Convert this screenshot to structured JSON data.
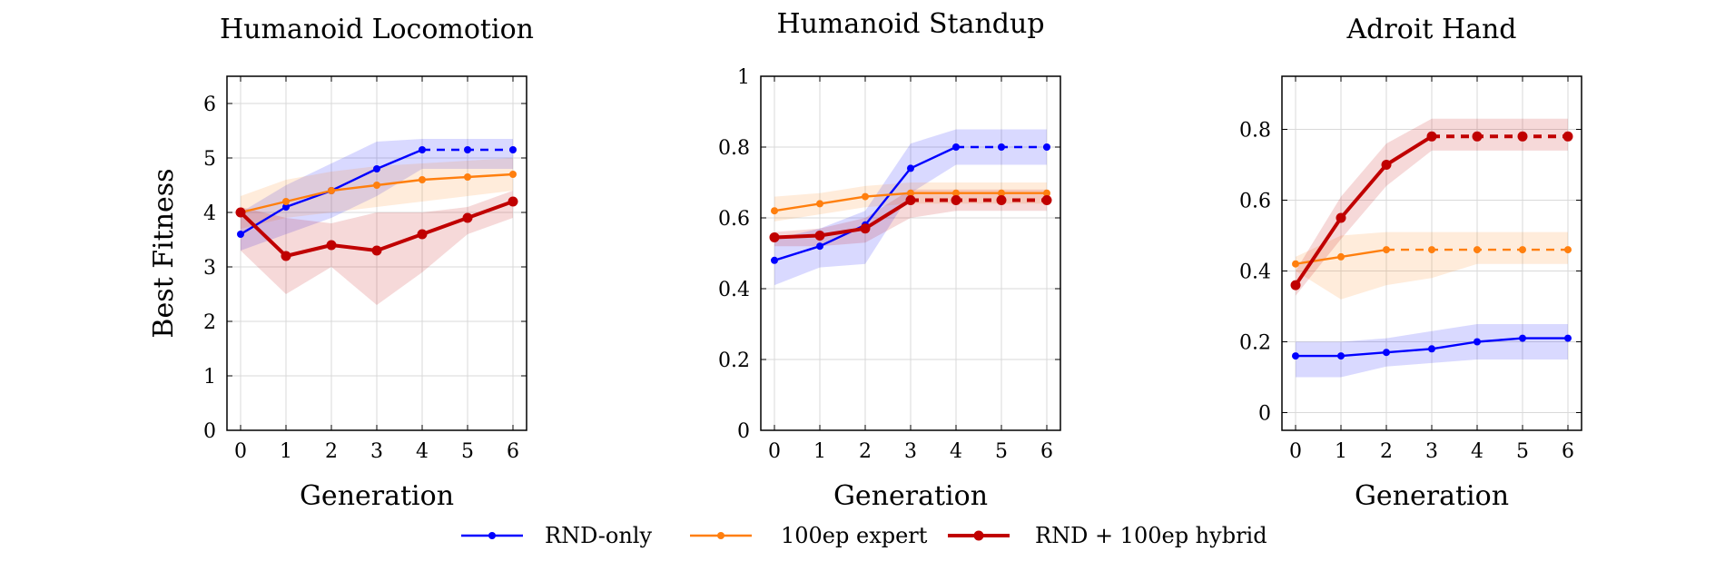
{
  "chart_data": [
    {
      "type": "line",
      "title": "Humanoid Locomotion",
      "xlabel": "Generation",
      "ylabel": "Best Fitness",
      "x": [
        0,
        1,
        2,
        3,
        4,
        5,
        6
      ],
      "xlim": [
        -0.3,
        6.3
      ],
      "ylim": [
        0,
        6.5
      ],
      "yticks": [
        0,
        1,
        2,
        3,
        4,
        5,
        6
      ],
      "ytick_labels": [
        "0",
        "1",
        "2",
        "3",
        "4",
        "5",
        "6"
      ],
      "grid": true,
      "series": [
        {
          "name": "RND-only",
          "color": "#0000ff",
          "values": [
            3.6,
            4.1,
            4.4,
            4.8,
            5.15,
            5.15,
            5.15
          ],
          "lower": [
            3.3,
            3.6,
            3.9,
            4.3,
            4.8,
            4.8,
            4.8
          ],
          "upper": [
            4.0,
            4.5,
            4.9,
            5.3,
            5.35,
            5.35,
            5.35
          ],
          "dashed_from": 4
        },
        {
          "name": "100ep expert",
          "color": "#ff7f0e",
          "values": [
            4.0,
            4.2,
            4.4,
            4.5,
            4.6,
            4.65,
            4.7
          ],
          "lower": [
            3.7,
            3.9,
            4.0,
            4.1,
            4.2,
            4.3,
            4.4
          ],
          "upper": [
            4.3,
            4.6,
            4.75,
            4.85,
            4.9,
            4.95,
            5.0
          ]
        },
        {
          "name": "RND + 100ep hybrid",
          "color": "#c00000",
          "values": [
            4.0,
            3.2,
            3.4,
            3.3,
            3.6,
            3.9,
            4.2
          ],
          "lower": [
            3.3,
            2.5,
            3.0,
            2.3,
            2.9,
            3.6,
            3.9
          ],
          "upper": [
            4.1,
            3.9,
            3.8,
            4.0,
            4.0,
            4.1,
            4.4
          ]
        }
      ]
    },
    {
      "type": "line",
      "title": "Humanoid Standup",
      "xlabel": "Generation",
      "ylabel": "",
      "x": [
        0,
        1,
        2,
        3,
        4,
        5,
        6
      ],
      "xlim": [
        -0.3,
        6.3
      ],
      "ylim": [
        0,
        1
      ],
      "yticks": [
        0,
        0.2,
        0.4,
        0.6,
        0.8,
        1
      ],
      "ytick_labels": [
        "0",
        "0.2",
        "0.4",
        "0.6",
        "0.8",
        "1"
      ],
      "grid": true,
      "series": [
        {
          "name": "RND-only",
          "color": "#0000ff",
          "values": [
            0.48,
            0.52,
            0.58,
            0.74,
            0.8,
            0.8,
            0.8
          ],
          "lower": [
            0.41,
            0.46,
            0.47,
            0.67,
            0.75,
            0.75,
            0.75
          ],
          "upper": [
            0.54,
            0.57,
            0.62,
            0.81,
            0.85,
            0.85,
            0.85
          ],
          "dashed_from": 4
        },
        {
          "name": "100ep expert",
          "color": "#ff7f0e",
          "values": [
            0.62,
            0.64,
            0.66,
            0.67,
            0.67,
            0.67,
            0.67
          ],
          "lower": [
            0.59,
            0.61,
            0.63,
            0.64,
            0.64,
            0.64,
            0.64
          ],
          "upper": [
            0.66,
            0.67,
            0.69,
            0.7,
            0.7,
            0.7,
            0.7
          ]
        },
        {
          "name": "RND + 100ep hybrid",
          "color": "#c00000",
          "values": [
            0.545,
            0.55,
            0.57,
            0.65,
            0.65,
            0.65,
            0.65
          ],
          "lower": [
            0.52,
            0.52,
            0.53,
            0.6,
            0.62,
            0.62,
            0.62
          ],
          "upper": [
            0.56,
            0.57,
            0.6,
            0.68,
            0.68,
            0.68,
            0.68
          ],
          "dashed_from": 3
        }
      ]
    },
    {
      "type": "line",
      "title": "Adroit Hand",
      "xlabel": "Generation",
      "ylabel": "",
      "x": [
        0,
        1,
        2,
        3,
        4,
        5,
        6
      ],
      "xlim": [
        -0.3,
        6.3
      ],
      "ylim": [
        -0.05,
        0.95
      ],
      "yticks": [
        0,
        0.2,
        0.4,
        0.6,
        0.8
      ],
      "ytick_labels": [
        "0",
        "0.2",
        "0.4",
        "0.6",
        "0.8"
      ],
      "grid": true,
      "series": [
        {
          "name": "RND-only",
          "color": "#0000ff",
          "values": [
            0.16,
            0.16,
            0.17,
            0.18,
            0.2,
            0.21,
            0.21
          ],
          "lower": [
            0.1,
            0.1,
            0.13,
            0.14,
            0.15,
            0.15,
            0.15
          ],
          "upper": [
            0.2,
            0.2,
            0.21,
            0.23,
            0.25,
            0.25,
            0.25
          ]
        },
        {
          "name": "100ep expert",
          "color": "#ff7f0e",
          "values": [
            0.42,
            0.44,
            0.46,
            0.46,
            0.46,
            0.46,
            0.46
          ],
          "lower": [
            0.4,
            0.32,
            0.36,
            0.38,
            0.42,
            0.42,
            0.42
          ],
          "upper": [
            0.44,
            0.5,
            0.51,
            0.51,
            0.51,
            0.51,
            0.51
          ],
          "dashed_from": 2
        },
        {
          "name": "RND + 100ep hybrid",
          "color": "#c00000",
          "values": [
            0.36,
            0.55,
            0.7,
            0.78,
            0.78,
            0.78,
            0.78
          ],
          "lower": [
            0.33,
            0.49,
            0.64,
            0.74,
            0.74,
            0.74,
            0.74
          ],
          "upper": [
            0.4,
            0.61,
            0.76,
            0.83,
            0.83,
            0.83,
            0.83
          ],
          "dashed_from": 3
        }
      ]
    }
  ],
  "legend": {
    "placement": "bottom-center",
    "entries": [
      {
        "label": "RND-only",
        "color": "#0000ff",
        "stroke": "thin"
      },
      {
        "label": "100ep expert",
        "color": "#ff7f0e",
        "stroke": "thin"
      },
      {
        "label": "RND + 100ep hybrid",
        "color": "#c00000",
        "stroke": "thick"
      }
    ]
  }
}
